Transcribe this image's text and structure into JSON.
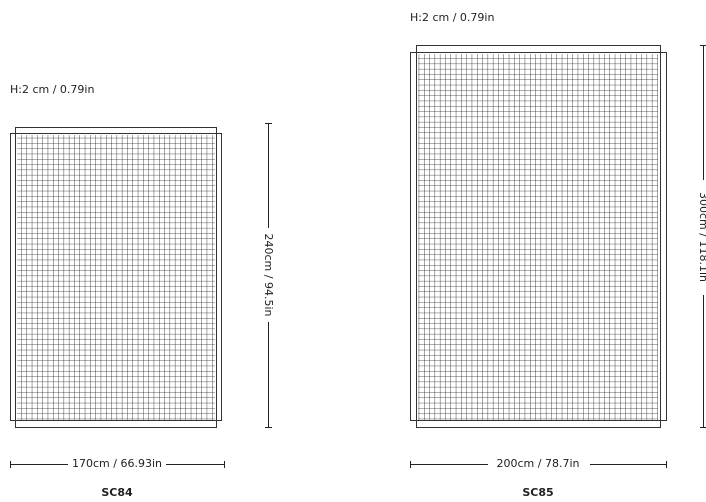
{
  "items": [
    {
      "name": "SC84",
      "height": "H:2 cm / 0.79in",
      "length": "240cm / 94.5in",
      "width": "170cm / 66.93in"
    },
    {
      "name": "SC85",
      "height": "H:2 cm / 0.79in",
      "length": "300cm / 118.1in",
      "width": "200cm / 78.7in"
    }
  ]
}
